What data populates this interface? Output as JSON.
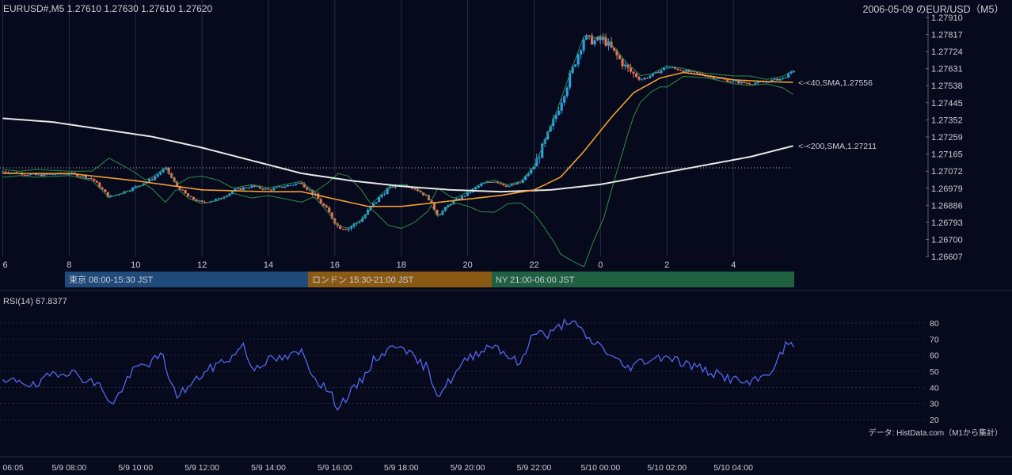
{
  "header": {
    "symbol_ohlc": "EURUSD#,M5 1.27610 1.27630 1.27610 1.27620",
    "date_pair": "2006-05-09 のEUR/USD（M5）"
  },
  "sessions": [
    {
      "label": "東京 08:00-15:30 JST",
      "color": "#1f4a7a"
    },
    {
      "label": "ロンドン 15:30-21:00 JST",
      "color": "#8a5a14"
    },
    {
      "label": "NY 21:00-06:00 JST",
      "color": "#1f6040"
    }
  ],
  "annotations": {
    "sma40": "<-<40,SMA,1.27556",
    "sma200": "<-<200,SMA,1.27211",
    "source": "データ: HistData.com（M1から集計）"
  },
  "rsi": {
    "label": "RSI(14) 67.8377"
  },
  "colors": {
    "bull": "#2d9fe0",
    "bear": "#e0735a",
    "sma40": "#f0a030",
    "sma200": "#e8e8e8",
    "bb": "#2f8a4a",
    "rsi": "#5566ee"
  },
  "chart_data": [
    {
      "type": "candlestick",
      "ylim": [
        1.26607,
        1.2791
      ],
      "y_ticks": [
        "1.27910",
        "1.27817",
        "1.27724",
        "1.27631",
        "1.27538",
        "1.27445",
        "1.27352",
        "1.27259",
        "1.27165",
        "1.27072",
        "1.26979",
        "1.26886",
        "1.26793",
        "1.26700",
        "1.26607"
      ],
      "x_ticks": [
        "6",
        "8",
        "10",
        "12",
        "14",
        "16",
        "18",
        "20",
        "22",
        "0",
        "2",
        "4"
      ],
      "x_time_ticks": [
        "06:05",
        "5/9 08:00",
        "5/9 10:00",
        "5/9 12:00",
        "5/9 14:00",
        "5/9 16:00",
        "5/9 18:00",
        "5/9 20:00",
        "5/9 22:00",
        "5/10 00:00",
        "5/10 02:00",
        "5/10 04:00"
      ],
      "x_hours_range": [
        5.917,
        29.833
      ],
      "prev_close_level": 1.2709,
      "close_path": [
        [
          6.0,
          1.2707
        ],
        [
          7.0,
          1.2705
        ],
        [
          8.0,
          1.2706
        ],
        [
          8.7,
          1.2703
        ],
        [
          9.2,
          1.2693
        ],
        [
          9.8,
          1.2697
        ],
        [
          10.5,
          1.2703
        ],
        [
          10.9,
          1.2709
        ],
        [
          11.2,
          1.27
        ],
        [
          11.6,
          1.2693
        ],
        [
          12.0,
          1.269
        ],
        [
          12.5,
          1.2692
        ],
        [
          13.0,
          1.2697
        ],
        [
          13.5,
          1.2699
        ],
        [
          14.0,
          1.2697
        ],
        [
          14.5,
          1.2699
        ],
        [
          15.0,
          1.2701
        ],
        [
          15.4,
          1.2694
        ],
        [
          15.8,
          1.2685
        ],
        [
          16.1,
          1.2677
        ],
        [
          16.4,
          1.2676
        ],
        [
          16.8,
          1.2681
        ],
        [
          17.2,
          1.269
        ],
        [
          17.6,
          1.2698
        ],
        [
          18.0,
          1.27
        ],
        [
          18.4,
          1.2698
        ],
        [
          18.8,
          1.2693
        ],
        [
          19.1,
          1.2683
        ],
        [
          19.5,
          1.269
        ],
        [
          20.0,
          1.2695
        ],
        [
          20.4,
          1.27
        ],
        [
          20.8,
          1.2702
        ],
        [
          21.2,
          1.2699
        ],
        [
          21.6,
          1.2701
        ],
        [
          22.0,
          1.271
        ],
        [
          22.3,
          1.2722
        ],
        [
          22.6,
          1.2735
        ],
        [
          22.9,
          1.275
        ],
        [
          23.2,
          1.2765
        ],
        [
          23.5,
          1.278
        ],
        [
          23.8,
          1.2778
        ],
        [
          24.1,
          1.2779
        ],
        [
          24.4,
          1.2772
        ],
        [
          24.8,
          1.2763
        ],
        [
          25.2,
          1.2757
        ],
        [
          25.6,
          1.276
        ],
        [
          26.0,
          1.2764
        ],
        [
          26.5,
          1.2762
        ],
        [
          27.0,
          1.276
        ],
        [
          27.5,
          1.2758
        ],
        [
          28.0,
          1.2756
        ],
        [
          28.5,
          1.2755
        ],
        [
          29.0,
          1.2756
        ],
        [
          29.5,
          1.2758
        ],
        [
          29.83,
          1.2762
        ]
      ],
      "sma40_path": [
        [
          6.0,
          1.2706
        ],
        [
          8.0,
          1.2706
        ],
        [
          10.0,
          1.2702
        ],
        [
          12.0,
          1.2697
        ],
        [
          14.0,
          1.2696
        ],
        [
          15.0,
          1.2696
        ],
        [
          16.0,
          1.2692
        ],
        [
          17.0,
          1.2688
        ],
        [
          18.0,
          1.2688
        ],
        [
          19.0,
          1.269
        ],
        [
          20.0,
          1.2692
        ],
        [
          21.0,
          1.2694
        ],
        [
          22.0,
          1.2697
        ],
        [
          22.8,
          1.2704
        ],
        [
          23.5,
          1.2718
        ],
        [
          24.3,
          1.2736
        ],
        [
          25.0,
          1.275
        ],
        [
          25.8,
          1.2758
        ],
        [
          26.5,
          1.2761
        ],
        [
          27.3,
          1.2759
        ],
        [
          28.0,
          1.2757
        ],
        [
          29.0,
          1.2756
        ],
        [
          29.83,
          1.27556
        ]
      ],
      "sma200_path": [
        [
          6.0,
          1.2736
        ],
        [
          7.5,
          1.2734
        ],
        [
          9.0,
          1.273
        ],
        [
          10.5,
          1.2726
        ],
        [
          12.0,
          1.272
        ],
        [
          13.5,
          1.2713
        ],
        [
          15.0,
          1.2706
        ],
        [
          16.5,
          1.2702
        ],
        [
          18.0,
          1.2699
        ],
        [
          19.5,
          1.2697
        ],
        [
          21.0,
          1.2696
        ],
        [
          22.5,
          1.2697
        ],
        [
          24.0,
          1.27
        ],
        [
          25.5,
          1.2705
        ],
        [
          27.0,
          1.271
        ],
        [
          28.5,
          1.2715
        ],
        [
          29.83,
          1.27211
        ]
      ]
    },
    {
      "type": "line",
      "series": [
        {
          "values": [
            [
              6.0,
              42
            ],
            [
              6.5,
              45
            ],
            [
              7.0,
              40
            ],
            [
              7.5,
              49
            ],
            [
              8.0,
              50
            ],
            [
              8.5,
              45
            ],
            [
              9.0,
              40
            ],
            [
              9.3,
              28
            ],
            [
              9.6,
              40
            ],
            [
              10.0,
              52
            ],
            [
              10.5,
              56
            ],
            [
              10.8,
              60
            ],
            [
              11.2,
              35
            ],
            [
              11.6,
              40
            ],
            [
              12.0,
              48
            ],
            [
              12.5,
              55
            ],
            [
              13.0,
              60
            ],
            [
              13.2,
              68
            ],
            [
              13.5,
              52
            ],
            [
              14.0,
              57
            ],
            [
              14.5,
              58
            ],
            [
              15.0,
              62
            ],
            [
              15.4,
              46
            ],
            [
              15.8,
              38
            ],
            [
              16.1,
              28
            ],
            [
              16.4,
              35
            ],
            [
              16.8,
              44
            ],
            [
              17.2,
              58
            ],
            [
              17.6,
              63
            ],
            [
              18.0,
              68
            ],
            [
              18.4,
              57
            ],
            [
              18.8,
              52
            ],
            [
              19.1,
              35
            ],
            [
              19.5,
              45
            ],
            [
              20.0,
              58
            ],
            [
              20.4,
              63
            ],
            [
              20.8,
              67
            ],
            [
              21.2,
              60
            ],
            [
              21.6,
              54
            ],
            [
              22.0,
              76
            ],
            [
              22.4,
              72
            ],
            [
              22.8,
              78
            ],
            [
              23.0,
              82
            ],
            [
              23.3,
              78
            ],
            [
              23.6,
              70
            ],
            [
              24.0,
              66
            ],
            [
              24.4,
              58
            ],
            [
              24.8,
              52
            ],
            [
              25.2,
              56
            ],
            [
              25.6,
              58
            ],
            [
              26.0,
              60
            ],
            [
              26.5,
              55
            ],
            [
              27.0,
              52
            ],
            [
              27.5,
              48
            ],
            [
              28.0,
              45
            ],
            [
              28.5,
              42
            ],
            [
              29.0,
              48
            ],
            [
              29.3,
              55
            ],
            [
              29.6,
              67
            ],
            [
              29.83,
              67.84
            ]
          ]
        }
      ],
      "ylim": [
        20,
        80
      ],
      "y_ticks": [
        "80",
        "70",
        "60",
        "50",
        "40",
        "30",
        "20"
      ]
    }
  ]
}
